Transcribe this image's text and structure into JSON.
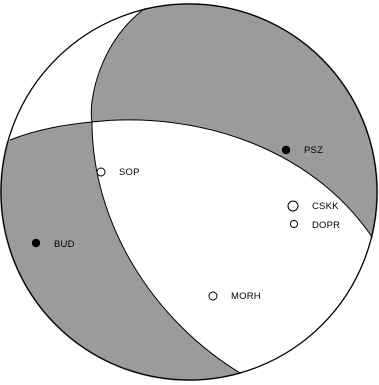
{
  "diagram": {
    "type": "focal-mechanism-beachball",
    "colors": {
      "compressional": "#9b9b9b",
      "dilatational": "#ffffff",
      "outline": "#000000",
      "polarity_up": "#000000",
      "polarity_down": "#ffffff"
    },
    "stations": [
      {
        "code": "PSZ",
        "polarity": "up"
      },
      {
        "code": "SOP",
        "polarity": "down"
      },
      {
        "code": "CSKK",
        "polarity": "down"
      },
      {
        "code": "DOPR",
        "polarity": "down"
      },
      {
        "code": "BUD",
        "polarity": "up"
      },
      {
        "code": "MORH",
        "polarity": "down"
      }
    ]
  }
}
